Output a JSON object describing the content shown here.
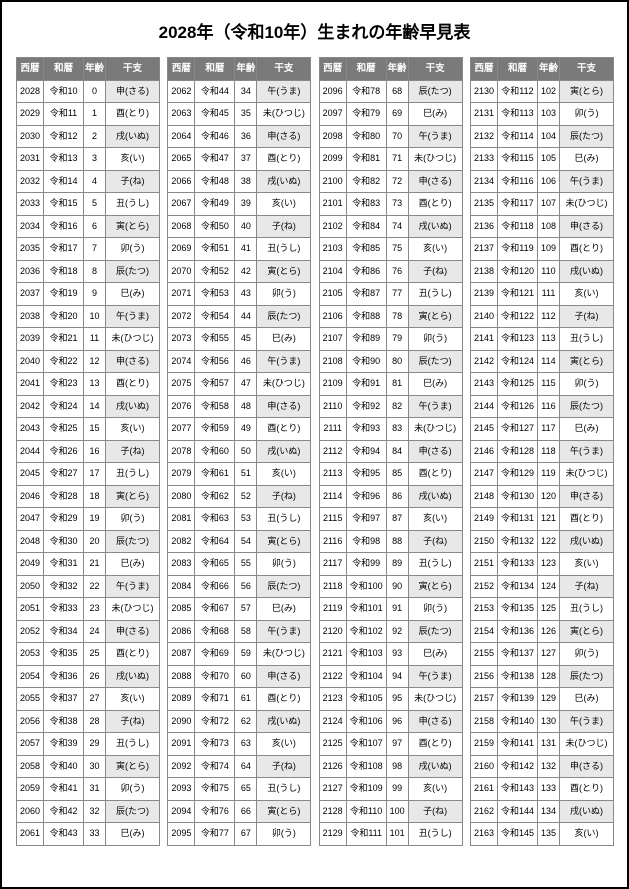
{
  "title": "2028年（令和10年）生まれの年齢早見表",
  "headers": [
    "西暦",
    "和暦",
    "年齢",
    "干支"
  ],
  "startYear": 2028,
  "endYear": 2163,
  "waPrefix": "令和",
  "waOffset": 2018,
  "eto": [
    "子(ね)",
    "丑(うし)",
    "寅(とら)",
    "卯(う)",
    "辰(たつ)",
    "巳(み)",
    "午(うま)",
    "未(ひつじ)",
    "申(さる)",
    "酉(とり)",
    "戌(いぬ)",
    "亥(い)"
  ],
  "numCols": 4,
  "rowsPerCol": 34
}
